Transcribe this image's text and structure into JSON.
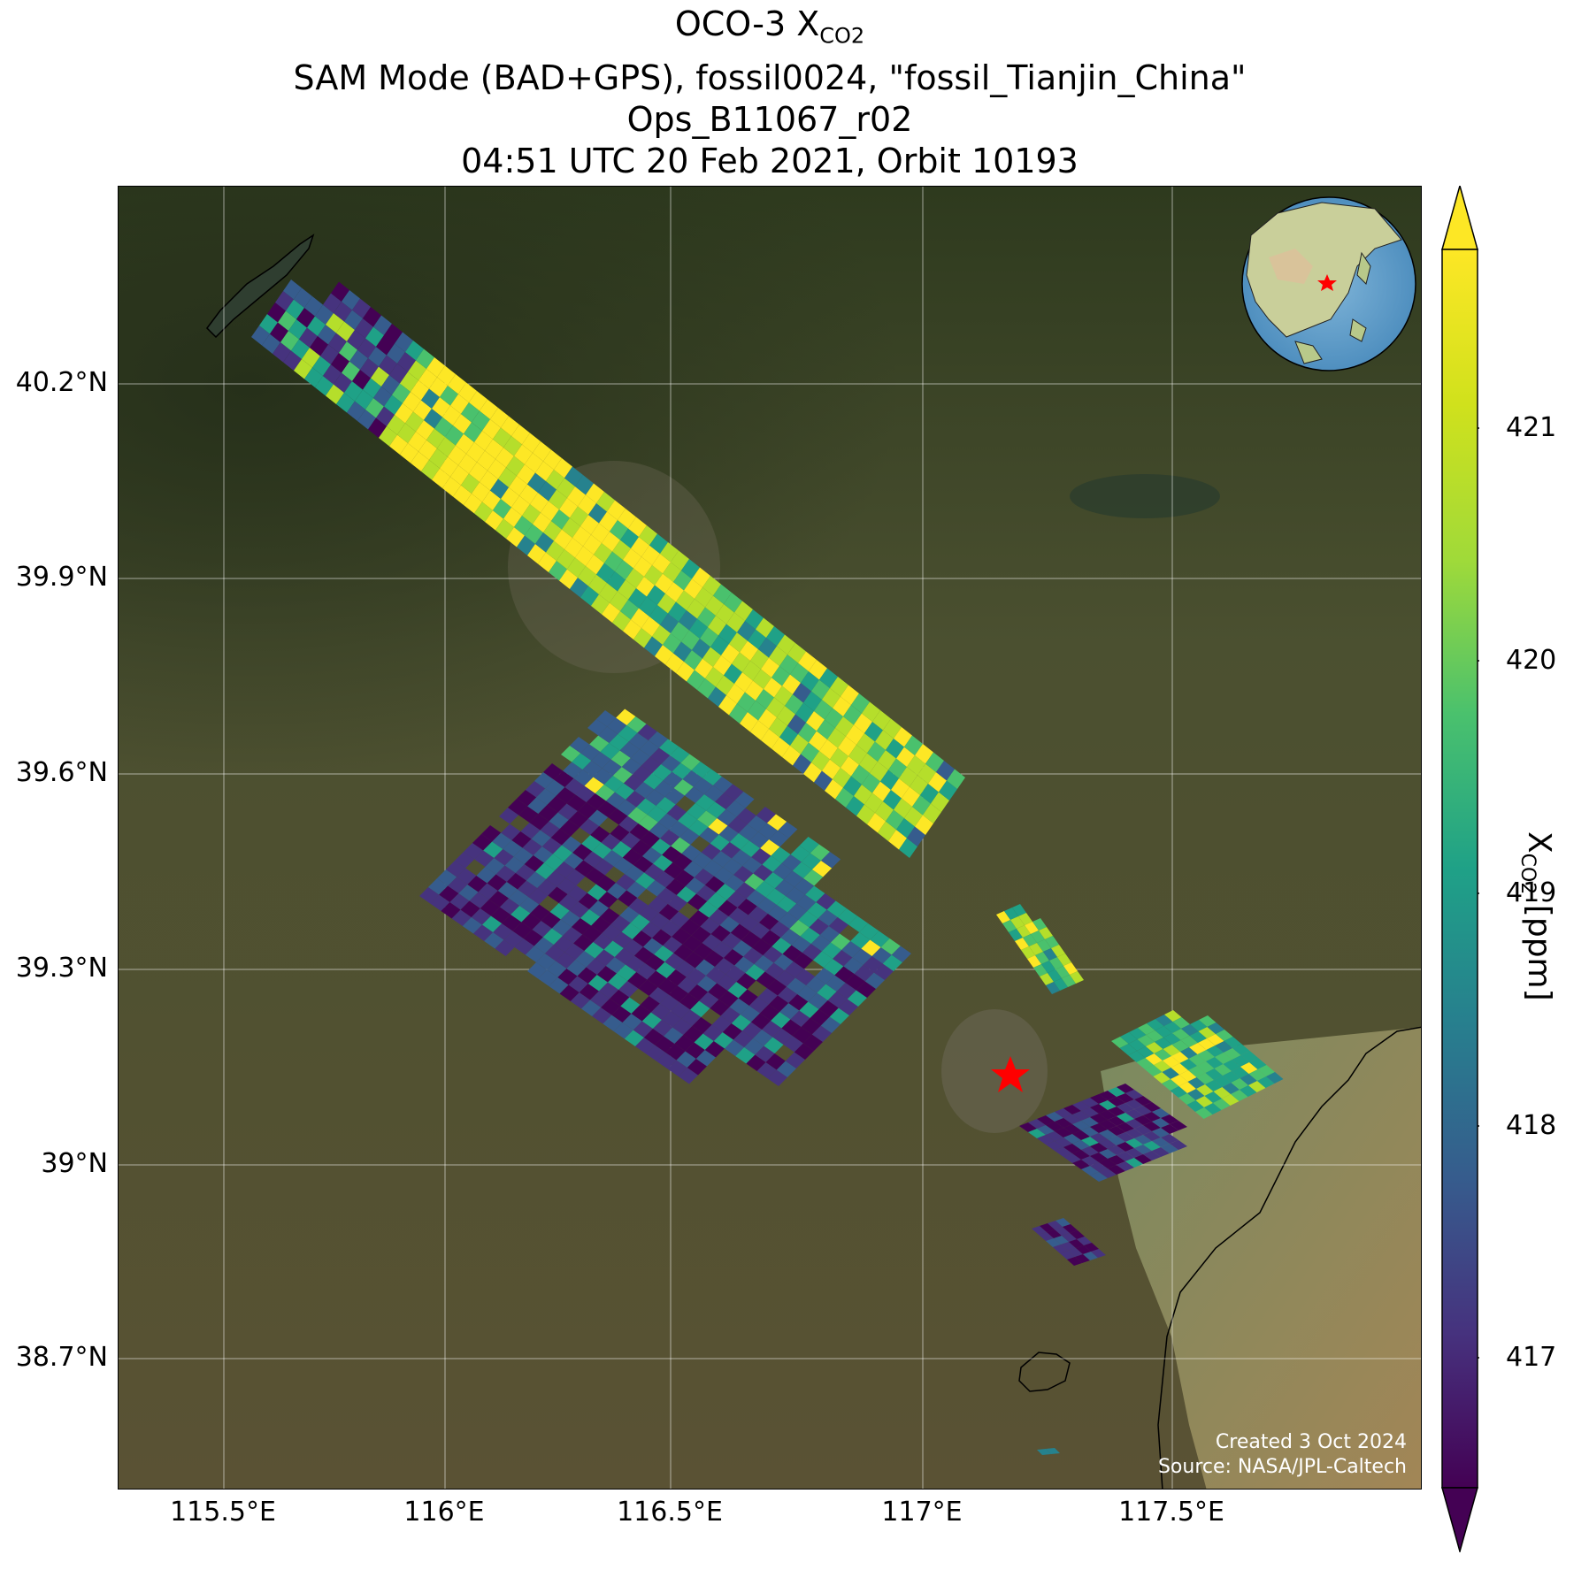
{
  "title": {
    "line1_prefix": "OCO-3 X",
    "line1_sub": "CO2",
    "line2": "SAM Mode (BAD+GPS), fossil0024, \"fossil_Tianjin_China\"",
    "line3": "Ops_B11067_r02",
    "line4": "04:51 UTC 20 Feb 2021, Orbit 10193"
  },
  "map": {
    "lon_ticks": [
      "115.5°E",
      "116°E",
      "116.5°E",
      "117°E",
      "117.5°E"
    ],
    "lat_ticks": [
      "40.2°N",
      "39.9°N",
      "39.6°N",
      "39.3°N",
      "39°N",
      "38.7°N"
    ],
    "target_marker": "red-star",
    "credit_line1": "Created 3 Oct 2024",
    "credit_line2": "Source: NASA/JPL-Caltech"
  },
  "colorbar": {
    "colormap": "viridis",
    "ticks": [
      "417",
      "418",
      "419",
      "420",
      "421"
    ],
    "label_prefix": "X",
    "label_sub": "CO2",
    "label_suffix": " [ppm]"
  },
  "colors": {
    "yellow": "#fde725",
    "lime": "#b5de2b",
    "green": "#4ac16d",
    "teal": "#1fa187",
    "cyan": "#26828e",
    "blue": "#365c8d",
    "indigo": "#46337e",
    "purple": "#440154",
    "target": "#ff0000"
  }
}
